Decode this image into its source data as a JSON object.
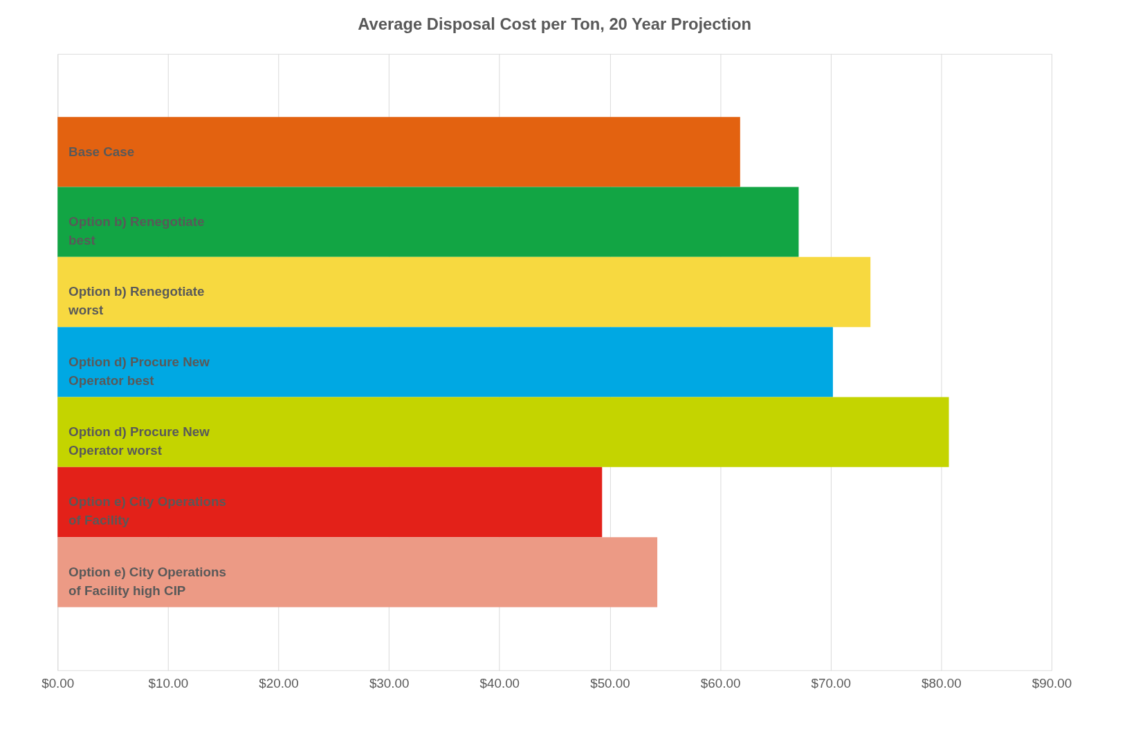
{
  "chart_data": {
    "type": "bar",
    "orientation": "horizontal",
    "title": "Average Disposal Cost per Ton, 20 Year Projection",
    "categories": [
      "Base Case",
      "Option b) Renegotiate\nbest",
      "Option b) Renegotiate\nworst",
      "Option d) Procure New\nOperator best",
      "Option d) Procure New\nOperator worst",
      "Option e) City Operations\nof Facility",
      "Option e) City Operations\nof Facility high CIP"
    ],
    "values": [
      61.8,
      67.1,
      73.6,
      70.2,
      80.7,
      49.3,
      54.3
    ],
    "colors": [
      "#e36210",
      "#12a544",
      "#f7d940",
      "#00a8e3",
      "#c4d400",
      "#e32119",
      "#ec9a85"
    ],
    "xlim": [
      0,
      90
    ],
    "xticks": [
      {
        "value": 0,
        "label": "$0.00"
      },
      {
        "value": 10,
        "label": "$10.00"
      },
      {
        "value": 20,
        "label": "$20.00"
      },
      {
        "value": 30,
        "label": "$30.00"
      },
      {
        "value": 40,
        "label": "$40.00"
      },
      {
        "value": 50,
        "label": "$50.00"
      },
      {
        "value": 60,
        "label": "$60.00"
      },
      {
        "value": 70,
        "label": "$70.00"
      },
      {
        "value": 80,
        "label": "$80.00"
      },
      {
        "value": 90,
        "label": "$90.00"
      }
    ],
    "grid": "x"
  }
}
